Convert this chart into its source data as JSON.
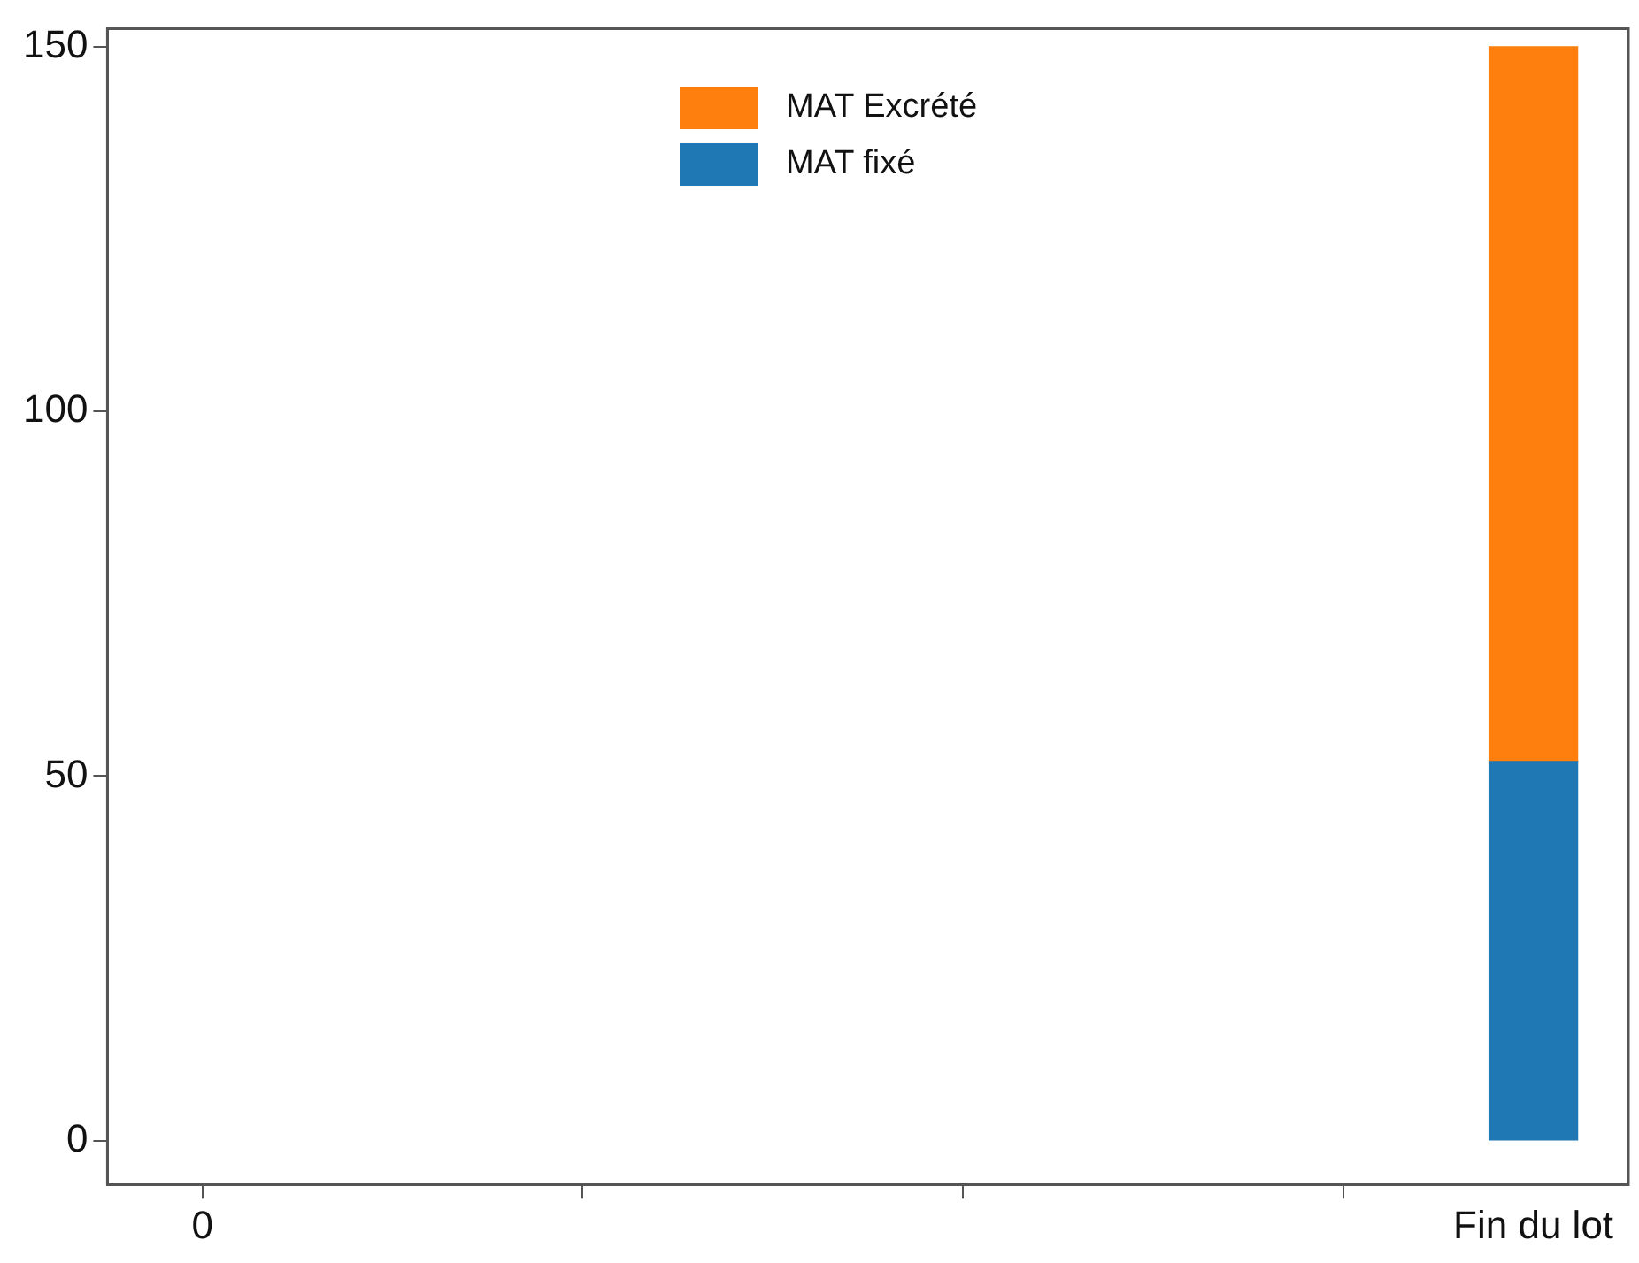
{
  "chart_data": {
    "type": "bar",
    "stacked": true,
    "categories": [
      "0",
      null,
      null,
      null,
      null,
      null,
      null,
      "Fin du lot"
    ],
    "series": [
      {
        "name": "MAT fixé",
        "color": "#1f77b4",
        "values": [
          null,
          null,
          null,
          null,
          null,
          null,
          null,
          52
        ]
      },
      {
        "name": "MAT Excrété",
        "color": "#ff7f0e",
        "values": [
          null,
          null,
          null,
          null,
          null,
          null,
          null,
          98
        ]
      }
    ],
    "ylim": [
      -6,
      152.5
    ],
    "yticks": [
      0,
      50,
      100,
      150
    ],
    "grid": false,
    "legend": "top"
  }
}
